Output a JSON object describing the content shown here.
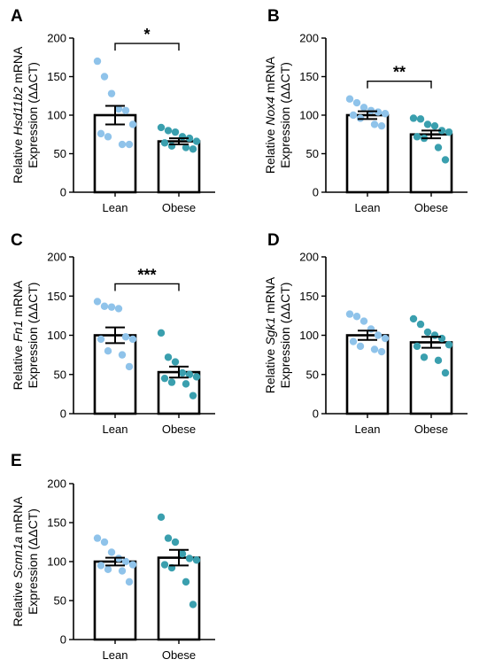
{
  "colors": {
    "lean_dots": "#8fc3ea",
    "obese_dots": "#3a9fae",
    "axis": "#000000"
  },
  "chart_data": [
    {
      "panel": "A",
      "type": "bar",
      "categories": [
        "Lean",
        "Obese"
      ],
      "ylabel_pre": "Relative ",
      "ylabel_italic": "Hsd11b2",
      "ylabel_post": " mRNA",
      "ylabel_line2": "Expression (ΔΔCT)",
      "ylim": [
        0,
        200
      ],
      "yticks": [
        0,
        50,
        100,
        150,
        200
      ],
      "means": [
        100,
        66
      ],
      "sem": [
        12,
        4
      ],
      "points": [
        [
          170,
          150,
          128,
          108,
          106,
          88,
          76,
          72,
          62,
          62
        ],
        [
          84,
          80,
          78,
          72,
          70,
          66,
          64,
          60,
          58,
          56
        ]
      ],
      "significance": "*"
    },
    {
      "panel": "B",
      "type": "bar",
      "categories": [
        "Lean",
        "Obese"
      ],
      "ylabel_pre": "Relative ",
      "ylabel_italic": "Nox4",
      "ylabel_post": " mRNA",
      "ylabel_line2": "Expression (ΔΔCT)",
      "ylim": [
        0,
        200
      ],
      "yticks": [
        0,
        50,
        100,
        150,
        200
      ],
      "means": [
        100,
        75
      ],
      "sem": [
        5,
        5
      ],
      "points": [
        [
          121,
          116,
          110,
          106,
          104,
          102,
          100,
          96,
          88,
          86
        ],
        [
          96,
          95,
          88,
          86,
          80,
          78,
          72,
          70,
          58,
          42
        ]
      ],
      "significance": "**"
    },
    {
      "panel": "C",
      "type": "bar",
      "categories": [
        "Lean",
        "Obese"
      ],
      "ylabel_pre": "Relative ",
      "ylabel_italic": "Fn1",
      "ylabel_post": " mRNA",
      "ylabel_line2": "Expression (ΔΔCT)",
      "ylim": [
        0,
        200
      ],
      "yticks": [
        0,
        50,
        100,
        150,
        200
      ],
      "means": [
        100,
        53
      ],
      "sem": [
        10,
        7
      ],
      "points": [
        [
          143,
          137,
          136,
          134,
          98,
          95,
          95,
          80,
          75,
          60
        ],
        [
          103,
          72,
          66,
          52,
          50,
          47,
          45,
          40,
          38,
          23
        ]
      ],
      "significance": "***"
    },
    {
      "panel": "D",
      "type": "bar",
      "categories": [
        "Lean",
        "Obese"
      ],
      "ylabel_pre": "Relative ",
      "ylabel_italic": "Sgk1",
      "ylabel_post": " mRNA",
      "ylabel_line2": "Expression (ΔΔCT)",
      "ylim": [
        0,
        200
      ],
      "yticks": [
        0,
        50,
        100,
        150,
        200
      ],
      "means": [
        100,
        91
      ],
      "sem": [
        6,
        7
      ],
      "points": [
        [
          127,
          124,
          118,
          108,
          100,
          96,
          92,
          86,
          82,
          79
        ],
        [
          121,
          114,
          104,
          100,
          96,
          88,
          86,
          72,
          68,
          52
        ]
      ],
      "significance": ""
    },
    {
      "panel": "E",
      "type": "bar",
      "categories": [
        "Lean",
        "Obese"
      ],
      "ylabel_pre": "Relative ",
      "ylabel_italic": "Scnn1a",
      "ylabel_post": " mRNA",
      "ylabel_line2": "Expression (ΔΔCT)",
      "ylim": [
        0,
        200
      ],
      "yticks": [
        0,
        50,
        100,
        150,
        200
      ],
      "means": [
        100,
        105
      ],
      "sem": [
        5,
        10
      ],
      "points": [
        [
          130,
          125,
          112,
          104,
          100,
          96,
          95,
          90,
          88,
          74
        ],
        [
          157,
          130,
          125,
          110,
          104,
          102,
          96,
          92,
          74,
          45
        ]
      ],
      "significance": ""
    }
  ]
}
